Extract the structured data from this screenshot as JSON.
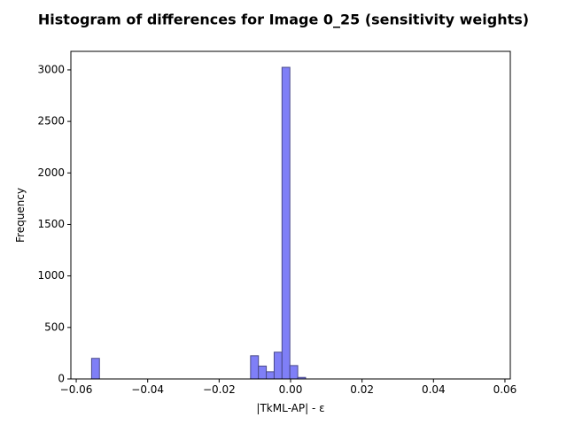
{
  "chart_data": {
    "type": "bar",
    "title": "Histogram of differences for Image 0_25 (sensitivity weights)",
    "xlabel": "|TkML-AP| - ε",
    "ylabel": "Frequency",
    "xlim": [
      -0.0615,
      0.0615
    ],
    "ylim": [
      0,
      3180
    ],
    "xticks": [
      -0.06,
      -0.04,
      -0.02,
      0.0,
      0.02,
      0.04,
      0.06
    ],
    "xtick_labels": [
      "−0.06",
      "−0.04",
      "−0.02",
      "0.00",
      "0.02",
      "0.04",
      "0.06"
    ],
    "yticks": [
      0,
      500,
      1000,
      1500,
      2000,
      2500,
      3000
    ],
    "ytick_labels": [
      "0",
      "500",
      "1000",
      "1500",
      "2000",
      "2500",
      "3000"
    ],
    "bin_width": 0.0022,
    "bar_color": "#7f7ff7",
    "edge_color": "#4a4a8a",
    "bars": [
      {
        "x": -0.0546,
        "value": 200
      },
      {
        "x": -0.0101,
        "value": 225
      },
      {
        "x": -0.0079,
        "value": 125
      },
      {
        "x": -0.0057,
        "value": 70
      },
      {
        "x": -0.0035,
        "value": 260
      },
      {
        "x": -0.0013,
        "value": 3025
      },
      {
        "x": 0.0009,
        "value": 130
      },
      {
        "x": 0.0031,
        "value": 15
      }
    ]
  }
}
